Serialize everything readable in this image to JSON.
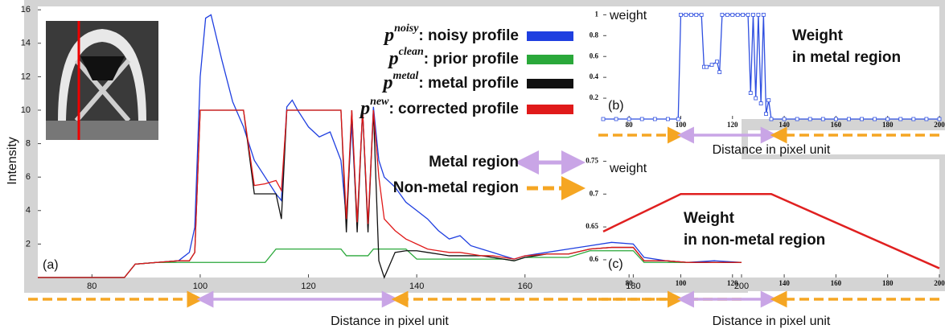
{
  "chart_data": [
    {
      "type": "line",
      "panel_label": "(a)",
      "x_label": "Distance in pixel unit",
      "y_label": "Intensity",
      "xlim": [
        70,
        200
      ],
      "ylim": [
        0,
        16.2
      ],
      "xticks": [
        80,
        100,
        120,
        140,
        160,
        180,
        200
      ],
      "yticks": [
        2,
        4,
        6,
        8,
        10,
        12,
        14,
        16
      ],
      "legend": "upper right",
      "metal_region": [
        100,
        136
      ],
      "region_labels": {
        "metal": "Metal region",
        "non_metal": "Non-metal region"
      },
      "x": [
        70,
        86,
        88,
        92,
        96,
        98,
        99,
        100,
        101,
        102,
        104,
        106,
        108,
        110,
        112,
        114,
        115,
        116,
        117,
        118,
        120,
        122,
        124,
        126,
        127,
        128,
        129,
        130,
        131,
        132,
        133,
        134,
        136,
        138,
        140,
        142,
        144,
        146,
        148,
        150,
        152,
        154,
        156,
        158,
        160,
        164,
        168,
        172,
        176,
        180,
        182,
        186,
        190,
        195,
        200
      ],
      "series": [
        {
          "symbol": "p",
          "superscript": "noisy",
          "name": ": noisy profile",
          "color": "#1f3fe0",
          "values": [
            0,
            0,
            0.8,
            0.9,
            1.0,
            1.5,
            3,
            12,
            15.5,
            15.7,
            13,
            10.5,
            9,
            7,
            6,
            5,
            4.6,
            10.2,
            10.6,
            10,
            9,
            8.4,
            8.7,
            7,
            3.5,
            9.2,
            3.2,
            10,
            3,
            10.2,
            7,
            6,
            5.4,
            4.5,
            4,
            3.5,
            2.8,
            2.3,
            2.5,
            1.9,
            1.7,
            1.5,
            1.3,
            1.1,
            1.3,
            1.5,
            1.7,
            1.9,
            2.1,
            2.0,
            1.2,
            1.0,
            0.9,
            1.0,
            0.9
          ]
        },
        {
          "symbol": "p",
          "superscript": "clean",
          "name": ": prior profile",
          "color": "#2aa83a",
          "values": [
            0,
            0,
            0.8,
            0.9,
            0.9,
            0.9,
            0.9,
            0.9,
            0.9,
            0.9,
            0.9,
            0.9,
            0.9,
            0.9,
            0.9,
            1.7,
            1.7,
            1.7,
            1.7,
            1.7,
            1.7,
            1.7,
            1.7,
            1.7,
            1.3,
            1.3,
            1.3,
            1.3,
            1.3,
            1.7,
            1.7,
            1.7,
            1.7,
            1.7,
            1.1,
            1.1,
            1.1,
            1.1,
            1.1,
            1.1,
            1.1,
            1.1,
            1.1,
            1.0,
            1.2,
            1.2,
            1.2,
            1.6,
            1.6,
            1.6,
            0.9,
            0.9,
            0.9,
            0.9,
            0.9
          ]
        },
        {
          "symbol": "p",
          "superscript": "metal",
          "name": ": metal profile",
          "color": "#111111",
          "values": [
            0,
            0,
            0.8,
            0.9,
            1.0,
            1.0,
            1.5,
            10,
            10,
            10,
            10,
            10,
            10,
            5,
            5,
            5,
            3.5,
            10,
            10,
            10,
            10,
            10,
            10,
            10,
            2.7,
            10,
            2.7,
            10,
            2.7,
            10,
            1,
            0,
            1.5,
            1.6,
            1.6,
            1.5,
            1.4,
            1.3,
            1.3,
            1.3,
            1.3,
            1.2,
            1.1,
            1.0,
            1.2,
            1.4,
            1.4,
            1.7,
            1.8,
            1.8,
            1.0,
            1.0,
            0.9,
            0.9,
            0.9
          ]
        },
        {
          "symbol": "p",
          "superscript": "new",
          "name": ": corrected profile",
          "color": "#e01a1a",
          "values": [
            0,
            0,
            0.8,
            0.9,
            1.0,
            1.0,
            1.5,
            10,
            10,
            10,
            10,
            10,
            10,
            5.5,
            5.6,
            5.8,
            5.2,
            10,
            10,
            10,
            10,
            10,
            10,
            10,
            3.5,
            10,
            3.3,
            10,
            3.2,
            10,
            6,
            3.5,
            2.8,
            2.3,
            2.0,
            1.7,
            1.6,
            1.5,
            1.5,
            1.4,
            1.3,
            1.3,
            1.2,
            1.1,
            1.3,
            1.4,
            1.4,
            1.7,
            1.8,
            1.8,
            1.0,
            1.0,
            0.9,
            0.9,
            0.9
          ]
        }
      ]
    },
    {
      "type": "line",
      "marker": "square",
      "panel_label": "(b)",
      "x_label": "Distance in pixel unit",
      "y_label": "weight",
      "text": [
        "Weight",
        "in metal region"
      ],
      "xlim": [
        70,
        200
      ],
      "ylim": [
        0,
        1.08
      ],
      "xticks": [
        80,
        100,
        120,
        140,
        160,
        180,
        200
      ],
      "yticks": [
        0.2,
        0.4,
        0.6,
        0.8,
        1
      ],
      "metal_region": [
        100,
        136
      ],
      "x": [
        70,
        75,
        80,
        85,
        90,
        95,
        99,
        100,
        102,
        104,
        106,
        108,
        109,
        110,
        112,
        114,
        115,
        116,
        118,
        120,
        122,
        124,
        126,
        127,
        128,
        129,
        130,
        131,
        132,
        133,
        134,
        135,
        140,
        145,
        150,
        155,
        160,
        165,
        170,
        175,
        180,
        185,
        190,
        195,
        200
      ],
      "series": [
        {
          "color": "#2f4fe0",
          "values": [
            0,
            0,
            0,
            0,
            0,
            0,
            0,
            1,
            1,
            1,
            1,
            1,
            0.5,
            0.5,
            0.52,
            0.55,
            0.45,
            1,
            1,
            1,
            1,
            1,
            1,
            0.25,
            1,
            0.2,
            1,
            0.15,
            1,
            0.05,
            0.18,
            0,
            0,
            0,
            0,
            0,
            0,
            0,
            0,
            0,
            0,
            0,
            0,
            0,
            0
          ]
        }
      ]
    },
    {
      "type": "line",
      "panel_label": "(c)",
      "x_label": "Distance in pixel unit",
      "y_label": "weight",
      "text": [
        "Weight",
        "in non-metal region"
      ],
      "xlim": [
        70,
        200
      ],
      "ylim": [
        0.573,
        0.753
      ],
      "xticks": [
        80,
        100,
        120,
        140,
        160,
        180,
        200
      ],
      "yticks": [
        0.6,
        0.65,
        0.7,
        0.75
      ],
      "metal_region": [
        100,
        136
      ],
      "x": [
        70,
        100,
        135,
        200
      ],
      "series": [
        {
          "color": "#e02020",
          "values": [
            0.643,
            0.7,
            0.7,
            0.587
          ]
        }
      ]
    }
  ]
}
